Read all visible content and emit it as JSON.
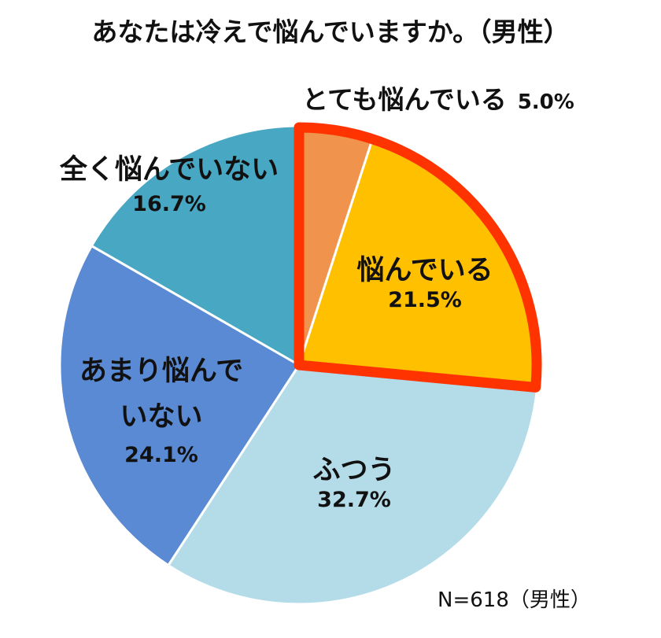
{
  "title": "あなたは冷えで悩んでいますか。（男性）",
  "footnote": "N=618（男性）",
  "colors": {
    "totemo": "#F0944D",
    "nayandeiru": "#FFC000",
    "futsuu": "#B4DCE8",
    "amari": "#5A8AD3",
    "mattaku": "#48A8C4",
    "highlight_border": "#FF3300"
  },
  "labels": {
    "totemo": {
      "name": "とても悩んでいる",
      "pct": "5.0%"
    },
    "nayandeiru": {
      "name": "悩んでいる",
      "pct": "21.5%"
    },
    "futsuu": {
      "name": "ふつう",
      "pct": "32.7%"
    },
    "amari": {
      "name1": "あまり悩んで",
      "name2": "いない",
      "pct": "24.1%"
    },
    "mattaku": {
      "name": "全く悩んでいない",
      "pct": "16.7%"
    }
  },
  "chart_data": {
    "type": "pie",
    "title": "あなたは冷えで悩んでいますか。（男性）",
    "categories": [
      "とても悩んでいる",
      "悩んでいる",
      "ふつう",
      "あまり悩んでいない",
      "全く悩んでいない"
    ],
    "values": [
      5.0,
      21.5,
      32.7,
      24.1,
      16.7
    ],
    "unit": "%",
    "start_angle": "12 o'clock, clockwise",
    "highlighted": [
      "とても悩んでいる",
      "悩んでいる"
    ],
    "annotation": "N=618（男性）"
  }
}
